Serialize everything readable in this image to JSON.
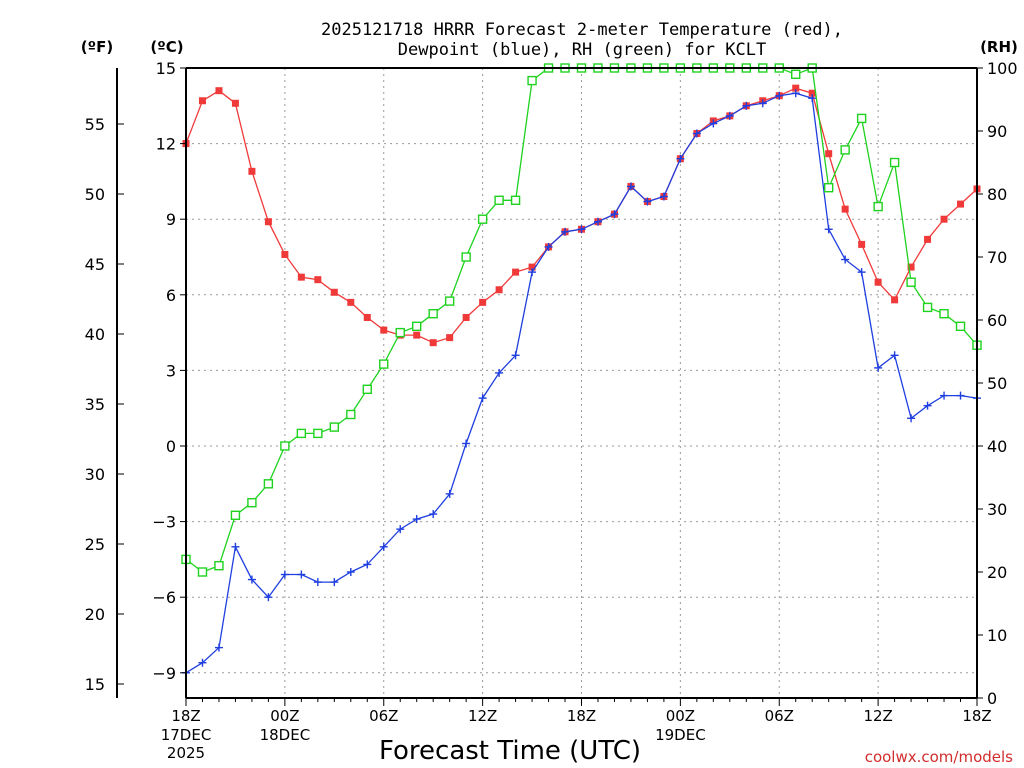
{
  "chart_data": {
    "type": "line",
    "title_line1": "2025121718 HRRR Forecast 2-meter Temperature (red),",
    "title_line2": "Dewpoint (blue), RH (green) for KCLT",
    "xlabel": "Forecast Time (UTC)",
    "unit_f": "(ºF)",
    "unit_c": "(ºC)",
    "unit_rh": "(RH)",
    "credit": "coolwx.com/models",
    "x_start_hour": 0,
    "x_end_hour": 48,
    "ylim_c": [
      -10,
      15
    ],
    "ylim_rh": [
      0,
      100
    ],
    "ylim_f": [
      14,
      59
    ],
    "c_ticks": [
      "15",
      "12",
      "9",
      "6",
      "3",
      "0",
      "−3",
      "−6",
      "−9"
    ],
    "c_tick_values": [
      15,
      12,
      9,
      6,
      3,
      0,
      -3,
      -6,
      -9
    ],
    "f_ticks": [
      "55",
      "50",
      "45",
      "40",
      "35",
      "30",
      "25",
      "20",
      "15"
    ],
    "f_tick_values": [
      55,
      50,
      45,
      40,
      35,
      30,
      25,
      20,
      15
    ],
    "rh_ticks": [
      "100",
      "90",
      "80",
      "70",
      "60",
      "50",
      "40",
      "30",
      "20",
      "10",
      "0"
    ],
    "rh_tick_values": [
      100,
      90,
      80,
      70,
      60,
      50,
      40,
      30,
      20,
      10,
      0
    ],
    "x_ticks": [
      {
        "hour": 0,
        "label": "18Z",
        "date": "17DEC",
        "year": "2025"
      },
      {
        "hour": 6,
        "label": "00Z",
        "date": "18DEC",
        "year": ""
      },
      {
        "hour": 12,
        "label": "06Z",
        "date": "",
        "year": ""
      },
      {
        "hour": 18,
        "label": "12Z",
        "date": "",
        "year": ""
      },
      {
        "hour": 24,
        "label": "18Z",
        "date": "",
        "year": ""
      },
      {
        "hour": 30,
        "label": "00Z",
        "date": "19DEC",
        "year": ""
      },
      {
        "hour": 36,
        "label": "06Z",
        "date": "",
        "year": ""
      },
      {
        "hour": 42,
        "label": "12Z",
        "date": "",
        "year": ""
      },
      {
        "hour": 48,
        "label": "18Z",
        "date": "",
        "year": ""
      }
    ],
    "series": [
      {
        "name": "Temperature",
        "unit": "C",
        "color": "#f03a3a",
        "marker": "filled-square",
        "values": [
          12.0,
          13.7,
          14.1,
          13.6,
          10.9,
          8.9,
          7.6,
          6.7,
          6.6,
          6.1,
          5.7,
          5.1,
          4.6,
          4.4,
          4.4,
          4.1,
          4.3,
          5.1,
          5.7,
          6.2,
          6.9,
          7.1,
          7.9,
          8.5,
          8.6,
          8.9,
          9.2,
          10.3,
          9.7,
          9.9,
          11.4,
          12.4,
          12.9,
          13.1,
          13.5,
          13.7,
          13.9,
          14.2,
          14.0,
          11.6,
          9.4,
          8.0,
          6.5,
          5.8,
          7.1,
          8.2,
          9.0,
          9.6,
          10.2
        ]
      },
      {
        "name": "Dewpoint",
        "unit": "C",
        "color": "#1f3fe0",
        "marker": "plus",
        "values": [
          -9.0,
          -8.6,
          -8.0,
          -4.0,
          -5.3,
          -6.0,
          -5.1,
          -5.1,
          -5.4,
          -5.4,
          -5.0,
          -4.7,
          -4.0,
          -3.3,
          -2.9,
          -2.7,
          -1.9,
          0.1,
          1.9,
          2.9,
          3.6,
          6.9,
          7.9,
          8.5,
          8.6,
          8.9,
          9.2,
          10.3,
          9.7,
          9.9,
          11.4,
          12.4,
          12.8,
          13.1,
          13.5,
          13.6,
          13.9,
          14.0,
          13.8,
          8.6,
          7.4,
          6.9,
          3.1,
          3.6,
          1.1,
          1.6,
          2.0,
          2.0,
          1.9
        ]
      },
      {
        "name": "RH",
        "unit": "%",
        "color": "#1ed21e",
        "marker": "open-square",
        "values": [
          22,
          20,
          21,
          29,
          31,
          34,
          40,
          42,
          42,
          43,
          45,
          49,
          53,
          58,
          59,
          61,
          63,
          70,
          76,
          79,
          79,
          98,
          100,
          100,
          100,
          100,
          100,
          100,
          100,
          100,
          100,
          100,
          100,
          100,
          100,
          100,
          100,
          99,
          100,
          81,
          87,
          92,
          78,
          85,
          66,
          62,
          61,
          59,
          56
        ]
      }
    ]
  }
}
